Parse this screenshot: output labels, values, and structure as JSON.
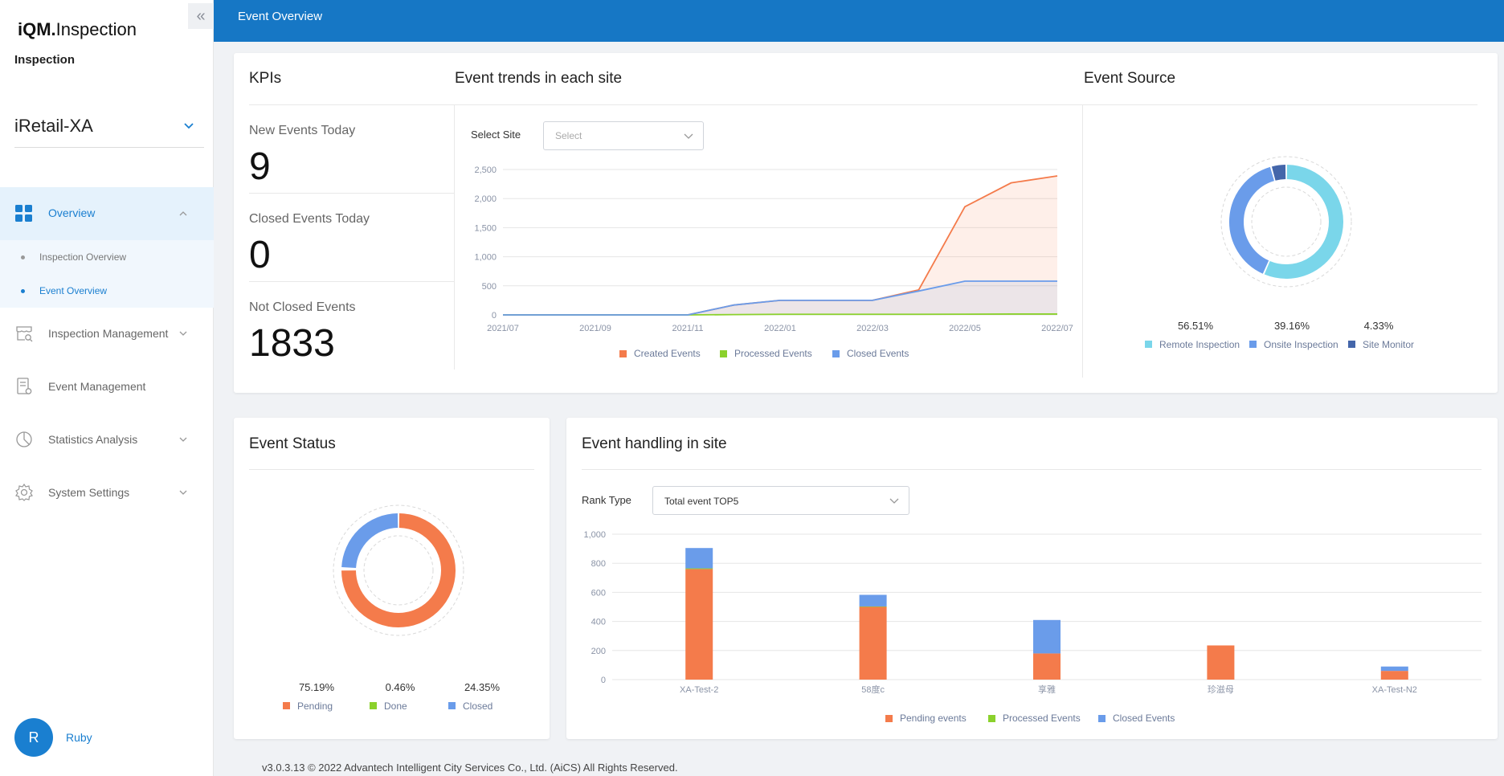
{
  "app": {
    "logo_bold": "iQM.",
    "logo_rest": "Inspection",
    "subtitle": "Inspection",
    "site": "iRetail-XA"
  },
  "sidebar": {
    "items": [
      {
        "label": "Overview",
        "icon": "dashboard-grid-icon",
        "active": true
      },
      {
        "label": "Inspection Management",
        "icon": "inspection-store-icon"
      },
      {
        "label": "Event Management",
        "icon": "event-document-icon"
      },
      {
        "label": "Statistics Analysis",
        "icon": "pie-chart-icon"
      },
      {
        "label": "System Settings",
        "icon": "gear-icon"
      }
    ],
    "sub_items": [
      {
        "label": "Inspection Overview",
        "active": false
      },
      {
        "label": "Event Overview",
        "active": true
      }
    ]
  },
  "user": {
    "initial": "R",
    "name": "Ruby"
  },
  "header": {
    "title": "Event Overview"
  },
  "kpis": {
    "title": "KPIs",
    "new_label": "New Events Today",
    "new_value": "9",
    "closed_label": "Closed Events Today",
    "closed_value": "0",
    "not_closed_label": "Not Closed Events",
    "not_closed_value": "1833"
  },
  "trends": {
    "title": "Event trends in each site",
    "select_label": "Select Site",
    "select_placeholder": "Select"
  },
  "source": {
    "title": "Event Source"
  },
  "status": {
    "title": "Event Status"
  },
  "handling": {
    "title": "Event handling in site",
    "rank_label": "Rank Type",
    "rank_value": "Total event TOP5"
  },
  "footer": "v3.0.3.13 © 2022 Advantech Intelligent City Services Co., Ltd. (AiCS) All Rights Reserved.",
  "colors": {
    "primary": "#1677c5",
    "created": "#f47b4b",
    "processed": "#8bd12c",
    "closed": "#6a9cea",
    "remote": "#7ad6ea",
    "onsite": "#6a9cea",
    "monitor": "#4466aa"
  },
  "chart_data": [
    {
      "type": "line",
      "title": "Event trends in each site",
      "x": [
        "2021/07",
        "2021/08",
        "2021/09",
        "2021/10",
        "2021/11",
        "2021/12",
        "2022/01",
        "2022/02",
        "2022/03",
        "2022/04",
        "2022/05",
        "2022/06",
        "2022/07"
      ],
      "x_tick_labels": [
        "2021/07",
        "2021/09",
        "2021/11",
        "2022/01",
        "2022/03",
        "2022/05",
        "2022/07"
      ],
      "y_ticks": [
        0,
        500,
        1000,
        1500,
        2000,
        2500
      ],
      "y_tick_labels": [
        "0",
        "500",
        "1,000",
        "1,500",
        "2,000",
        "2,500"
      ],
      "ylim": [
        0,
        2500
      ],
      "series": [
        {
          "name": "Created Events",
          "values": [
            0,
            0,
            0,
            0,
            0,
            170,
            250,
            250,
            250,
            430,
            1860,
            2270,
            2390
          ]
        },
        {
          "name": "Processed Events",
          "values": [
            0,
            0,
            0,
            0,
            0,
            5,
            10,
            10,
            10,
            10,
            12,
            15,
            15
          ]
        },
        {
          "name": "Closed Events",
          "values": [
            0,
            0,
            0,
            0,
            0,
            170,
            250,
            250,
            250,
            410,
            580,
            580,
            580
          ]
        }
      ],
      "legend": "bottom"
    },
    {
      "type": "pie",
      "title": "Event Source",
      "labels": [
        "Remote Inspection",
        "Onsite Inspection",
        "Site Monitor"
      ],
      "values": [
        56.51,
        39.16,
        4.33
      ],
      "value_labels": [
        "56.51%",
        "39.16%",
        "4.33%"
      ],
      "legend": "bottom"
    },
    {
      "type": "pie",
      "title": "Event Status",
      "labels": [
        "Pending",
        "Done",
        "Closed"
      ],
      "values": [
        75.19,
        0.46,
        24.35
      ],
      "value_labels": [
        "75.19%",
        "0.46%",
        "24.35%"
      ],
      "legend": "bottom"
    },
    {
      "type": "bar",
      "title": "Event handling in site",
      "categories": [
        "XA-Test-2",
        "58度c",
        "享雅",
        "珍滋母",
        "XA-Test-N2"
      ],
      "y_ticks": [
        0,
        200,
        400,
        600,
        800,
        1000
      ],
      "y_tick_labels": [
        "0",
        "200",
        "400",
        "600",
        "800",
        "1,000"
      ],
      "ylim": [
        0,
        1000
      ],
      "series": [
        {
          "name": "Pending events",
          "values": [
            760,
            500,
            180,
            235,
            60
          ]
        },
        {
          "name": "Processed Events",
          "values": [
            5,
            3,
            0,
            0,
            0
          ]
        },
        {
          "name": "Closed Events",
          "values": [
            140,
            80,
            230,
            0,
            30
          ]
        }
      ],
      "legend": "bottom"
    }
  ]
}
